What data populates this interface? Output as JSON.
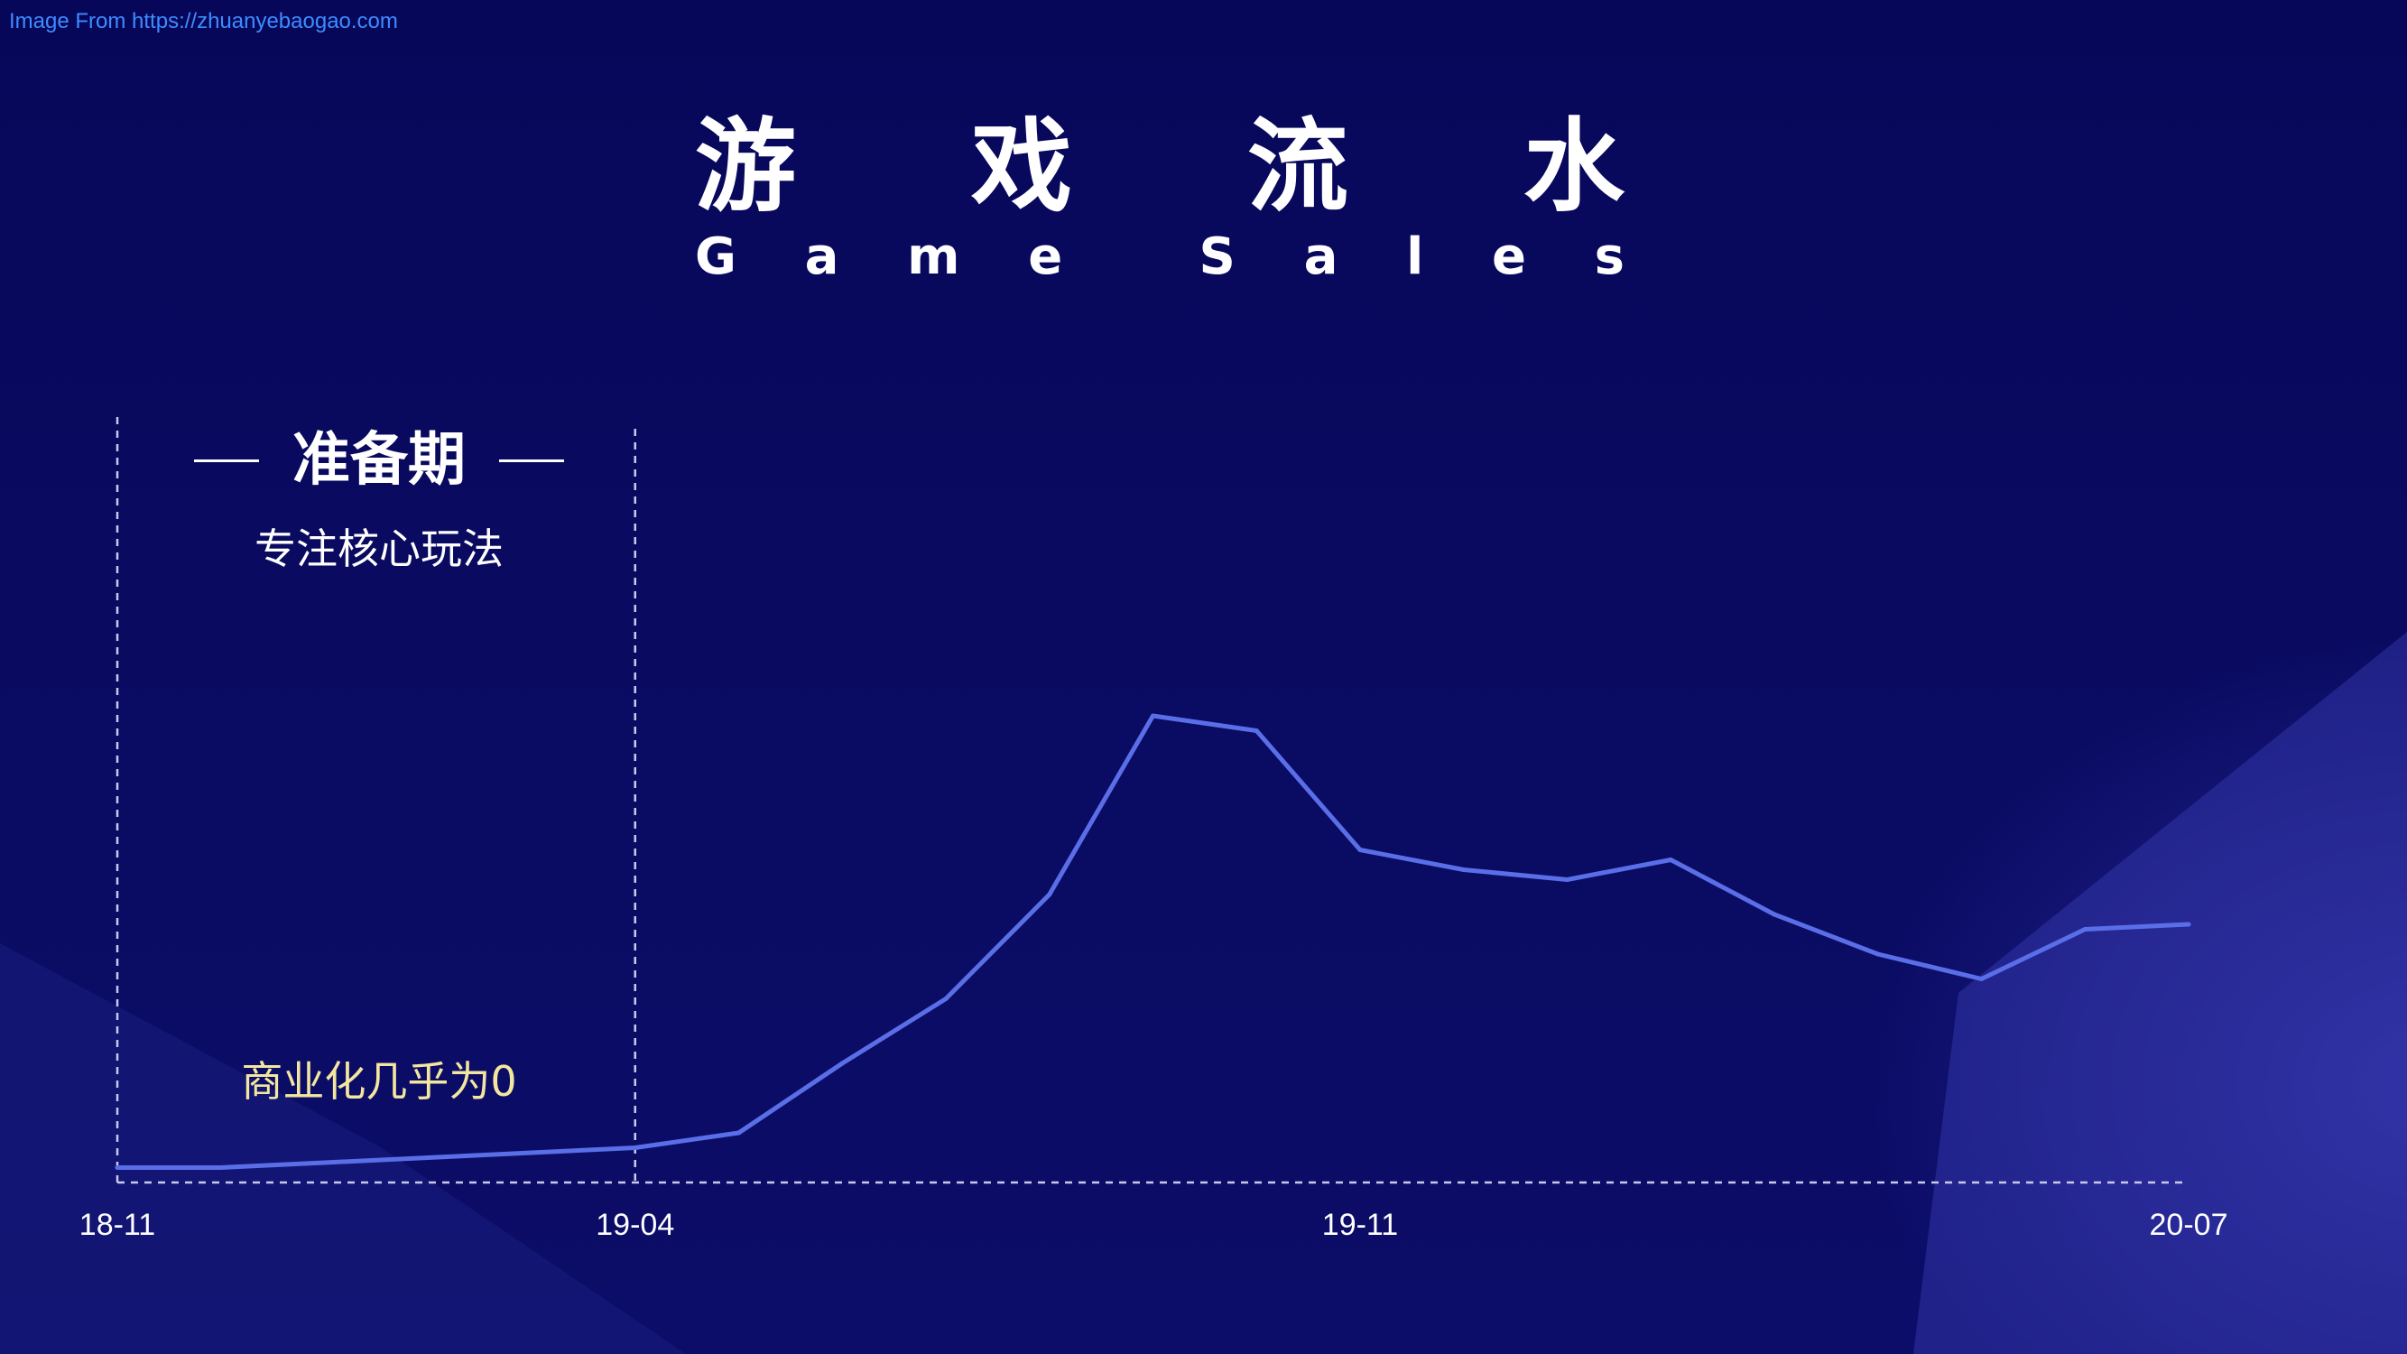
{
  "source_note": "Image From https://zhuanyebaogao.com",
  "title": {
    "cn_chars": [
      "游",
      "戏",
      "流",
      "水"
    ],
    "en_chars": [
      "G",
      "a",
      "m",
      "e",
      " ",
      "S",
      "a",
      "l",
      "e",
      "s"
    ]
  },
  "phase": {
    "label": "准备期",
    "subtitle": "专注核心玩法",
    "note": "商业化几乎为0"
  },
  "colors": {
    "background": "#07085a",
    "line": "#5a6ee8",
    "note": "#f3e7a0",
    "source": "#3d8cff"
  },
  "chart_data": {
    "type": "line",
    "title": "游戏流水",
    "subtitle": "Game Sales",
    "tick_labels": [
      "18-11",
      "19-04",
      "19-11",
      "20-07"
    ],
    "tick_positions": [
      0,
      5,
      12,
      20
    ],
    "x_range": [
      0,
      20
    ],
    "ylim": [
      0,
      100
    ],
    "grid": false,
    "legend": "none",
    "highlighted_period": {
      "start": 0,
      "end": 5,
      "label": "准备期"
    },
    "values": [
      3,
      3,
      4,
      5,
      6,
      7,
      10,
      24,
      37,
      58,
      94,
      91,
      67,
      63,
      61,
      65,
      54,
      46,
      41,
      51,
      52
    ]
  }
}
